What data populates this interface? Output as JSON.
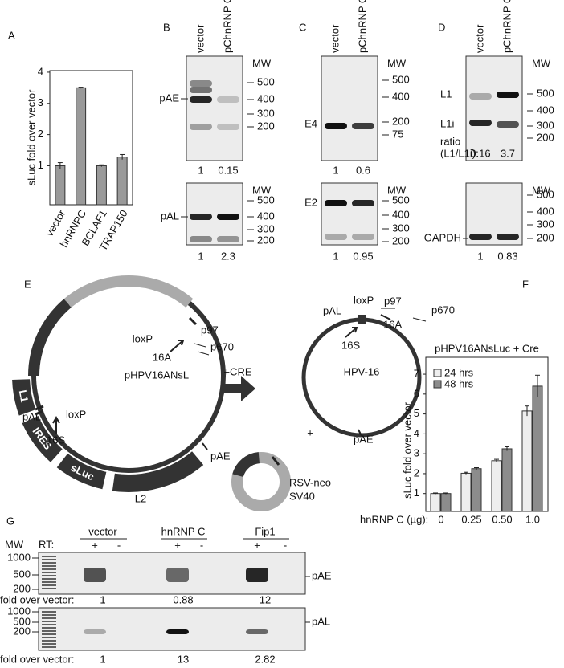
{
  "chart_data": [
    {
      "type": "bar",
      "panel": "A",
      "y_label": "sLuc fold over vector",
      "categories": [
        "vector",
        "hnRNPC",
        "BCLAF1",
        "TRAP150"
      ],
      "values": [
        1,
        3.5,
        1,
        1.28
      ],
      "errors": [
        0.1,
        0.02,
        0.03,
        0.08
      ],
      "color": "#9a9a9a",
      "ylim": [
        -0.25,
        4.05
      ],
      "yticks": [
        1,
        2,
        3,
        4
      ]
    },
    {
      "type": "grouped_bar",
      "panel": "F",
      "title": "pHPV16ANsLuc + Cre",
      "y_label": "sLuc fold over vector",
      "x_label": "hnRNP C (µg):",
      "categories": [
        "0",
        "0.25",
        "0.50",
        "1.0"
      ],
      "series": [
        {
          "name": "24 hrs",
          "color": "#eeeeee",
          "values": [
            1,
            2.02,
            2.65,
            5.15
          ],
          "errors": [
            0.03,
            0.05,
            0.07,
            0.25
          ]
        },
        {
          "name": "48 hrs",
          "color": "#8c8c8c",
          "values": [
            1,
            2.25,
            3.25,
            6.4
          ],
          "errors": [
            0.03,
            0.05,
            0.1,
            0.55
          ]
        }
      ],
      "ylim": [
        0.1,
        7.85
      ],
      "yticks": [
        1,
        2,
        3,
        4,
        5,
        6,
        7
      ],
      "legend": "upper-left"
    }
  ],
  "gel_panels": [
    {
      "label": "B",
      "lanes": [
        "vector",
        "pChnRNP C"
      ],
      "blots": [
        {
          "side_labels": [
            "pAE"
          ],
          "mw_title": "MW",
          "mw": [
            "500",
            "400",
            "300",
            "200"
          ],
          "quant": [
            1,
            0.15
          ]
        },
        {
          "side_labels": [
            "pAL"
          ],
          "mw_title": "MW",
          "mw": [
            "500",
            "400",
            "300",
            "200"
          ],
          "quant": [
            1,
            2.3
          ]
        }
      ]
    },
    {
      "label": "C",
      "lanes": [
        "vector",
        "pChnRNP C"
      ],
      "blots": [
        {
          "side_labels": [
            "E4"
          ],
          "mw_title": "MW",
          "mw": [
            "500",
            "400",
            "200",
            "75"
          ],
          "quant": [
            1,
            0.6
          ]
        },
        {
          "side_labels": [
            "E2"
          ],
          "mw_title": "MW",
          "mw": [
            "500",
            "400",
            "300",
            "200"
          ],
          "quant": [
            1,
            0.95
          ]
        }
      ]
    },
    {
      "label": "D",
      "lanes": [
        "vector",
        "pChnRNP C"
      ],
      "blots": [
        {
          "side_labels": [
            "L1",
            "L1i",
            "ratio",
            "(L1/L1i):"
          ],
          "mw_title": "MW",
          "mw": [
            "500",
            "400",
            "300",
            "200"
          ],
          "quant": [
            0.16,
            3.7
          ]
        },
        {
          "side_labels": [
            "GAPDH"
          ],
          "mw_title": "MW",
          "mw": [
            "500",
            "400",
            "300",
            "200"
          ],
          "quant": [
            1,
            0.83
          ]
        }
      ]
    }
  ],
  "panel_e": {
    "label": "E",
    "plasmid": "pHPV16ANsL",
    "plasmid_labels": [
      "pAL",
      "loxP",
      "16S",
      "loxP",
      "16A",
      "p97",
      "p670",
      "pAE",
      "L2"
    ],
    "boxes": [
      "sLuc",
      "IRES",
      "L1"
    ],
    "arrow_label": "+CRE",
    "product": "HPV-16",
    "product_labels": [
      "pAL",
      "loxP",
      "p97",
      "p670",
      "16S",
      "16A",
      "pAE"
    ],
    "plus": "+",
    "side_plasmid": [
      "RSV-neo",
      "SV40"
    ]
  },
  "panel_g": {
    "label": "G",
    "mw_title": "MW",
    "rt_label": "RT:",
    "groups": [
      "vector",
      "hnRNP C",
      "Fip1"
    ],
    "rt_signs": [
      "+",
      "-",
      "+",
      "-",
      "+",
      "-"
    ],
    "blots": [
      {
        "target": "pAE",
        "mw": [
          "1000",
          "500",
          "200"
        ],
        "quant_label": "fold over vector:",
        "quant": [
          1,
          0.88,
          12
        ]
      },
      {
        "target": "pAL",
        "mw": [
          "1000",
          "500",
          "200"
        ],
        "quant_label": "fold over vector:",
        "quant": [
          1,
          13,
          2.82
        ]
      }
    ]
  }
}
